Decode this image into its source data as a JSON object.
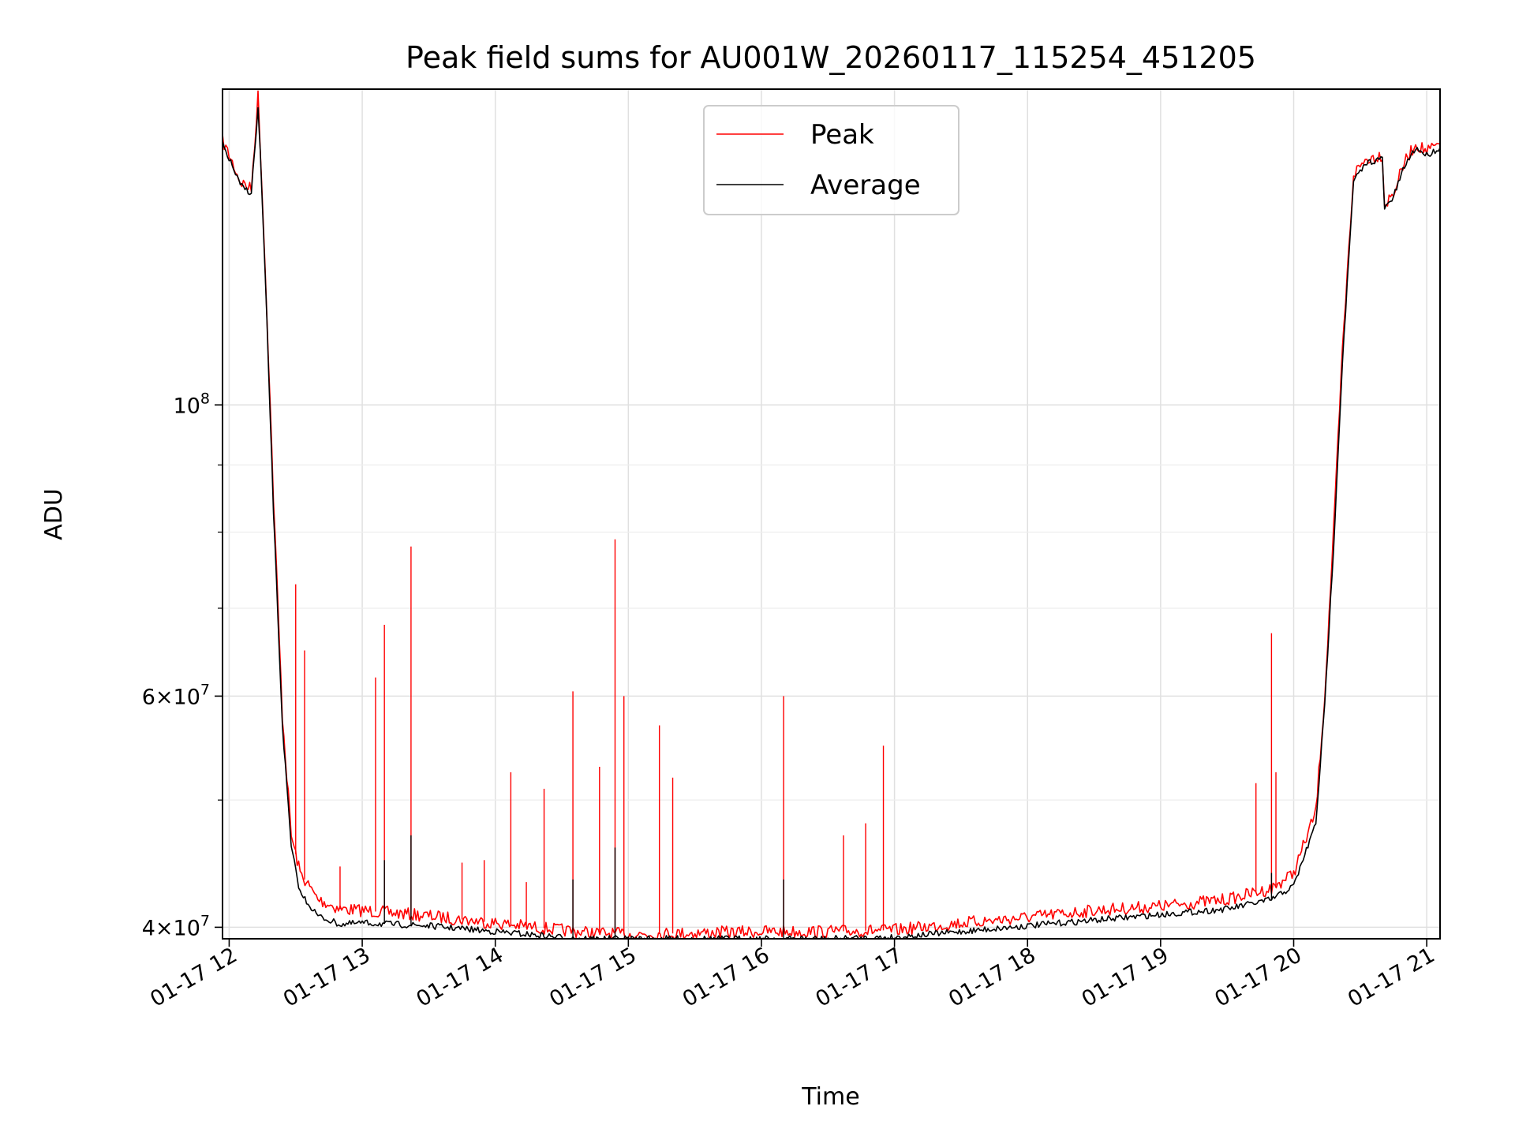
{
  "chart_data": {
    "type": "line",
    "title": "Peak field sums for AU001W_20260117_115254_451205",
    "xlabel": "Time",
    "ylabel": "ADU",
    "y_scale": "log",
    "ylim": [
      39200000,
      174000000
    ],
    "xlim": [
      "2026-01-17T11:57:00",
      "2026-01-17T21:06:00"
    ],
    "x_ticks": [
      "01-17 12",
      "01-17 13",
      "01-17 14",
      "01-17 15",
      "01-17 16",
      "01-17 17",
      "01-17 18",
      "01-17 19",
      "01-17 20",
      "01-17 21"
    ],
    "y_ticks": [
      {
        "value": 40000000,
        "mantissa": "4",
        "exponent": "7"
      },
      {
        "value": 60000000,
        "mantissa": "6",
        "exponent": "7"
      },
      {
        "value": 100000000,
        "mantissa": "",
        "exponent": "8"
      }
    ],
    "grid": true,
    "legend_position": "top-center",
    "series": [
      {
        "name": "Peak",
        "color": "#ff0000",
        "x": [
          "2026-01-17T11:57:00",
          "2026-01-17T12:00:00",
          "2026-01-17T12:05:00",
          "2026-01-17T12:10:00",
          "2026-01-17T12:13:00",
          "2026-01-17T12:14:00",
          "2026-01-17T12:17:00",
          "2026-01-17T12:20:00",
          "2026-01-17T12:24:00",
          "2026-01-17T12:28:00",
          "2026-01-17T12:32:00",
          "2026-01-17T12:40:00",
          "2026-01-17T12:50:00",
          "2026-01-17T13:00:00",
          "2026-01-17T13:30:00",
          "2026-01-17T14:00:00",
          "2026-01-17T14:30:00",
          "2026-01-17T14:45:00",
          "2026-01-17T15:00:00",
          "2026-01-17T15:30:00",
          "2026-01-17T16:00:00",
          "2026-01-17T16:30:00",
          "2026-01-17T17:00:00",
          "2026-01-17T17:30:00",
          "2026-01-17T18:00:00",
          "2026-01-17T18:30:00",
          "2026-01-17T19:00:00",
          "2026-01-17T19:30:00",
          "2026-01-17T19:50:00",
          "2026-01-17T20:00:00",
          "2026-01-17T20:10:00",
          "2026-01-17T20:14:00",
          "2026-01-17T20:18:00",
          "2026-01-17T20:22:00",
          "2026-01-17T20:27:00",
          "2026-01-17T20:33:00",
          "2026-01-17T20:40:00",
          "2026-01-17T20:41:00",
          "2026-01-17T20:45:00",
          "2026-01-17T20:50:00",
          "2026-01-17T20:55:00",
          "2026-01-17T21:00:00",
          "2026-01-17T21:06:00"
        ],
        "y": [
          159000000,
          155000000,
          148000000,
          146000000,
          172000000,
          158000000,
          118000000,
          85000000,
          58000000,
          47000000,
          44000000,
          42000000,
          41300000,
          41200000,
          40800000,
          40300000,
          39800000,
          39600000,
          39500000,
          39600000,
          39700000,
          39700000,
          39800000,
          40300000,
          40700000,
          41200000,
          41500000,
          42000000,
          42800000,
          44000000,
          49000000,
          60000000,
          80000000,
          110000000,
          150000000,
          154000000,
          155000000,
          142000000,
          145000000,
          153000000,
          158000000,
          156000000,
          158000000
        ],
        "spikes": [
          {
            "x": "2026-01-17T12:30:00",
            "y": 73000000
          },
          {
            "x": "2026-01-17T12:34:00",
            "y": 65000000
          },
          {
            "x": "2026-01-17T12:50:00",
            "y": 44500000
          },
          {
            "x": "2026-01-17T13:06:00",
            "y": 62000000
          },
          {
            "x": "2026-01-17T13:10:00",
            "y": 68000000
          },
          {
            "x": "2026-01-17T13:22:00",
            "y": 78000000
          },
          {
            "x": "2026-01-17T13:45:00",
            "y": 44800000
          },
          {
            "x": "2026-01-17T13:55:00",
            "y": 45000000
          },
          {
            "x": "2026-01-17T14:07:00",
            "y": 52500000
          },
          {
            "x": "2026-01-17T14:14:00",
            "y": 43300000
          },
          {
            "x": "2026-01-17T14:22:00",
            "y": 51000000
          },
          {
            "x": "2026-01-17T14:35:00",
            "y": 60500000
          },
          {
            "x": "2026-01-17T14:47:00",
            "y": 53000000
          },
          {
            "x": "2026-01-17T14:54:00",
            "y": 79000000
          },
          {
            "x": "2026-01-17T14:58:00",
            "y": 60000000
          },
          {
            "x": "2026-01-17T15:14:00",
            "y": 57000000
          },
          {
            "x": "2026-01-17T15:20:00",
            "y": 52000000
          },
          {
            "x": "2026-01-17T16:10:00",
            "y": 60000000
          },
          {
            "x": "2026-01-17T16:37:00",
            "y": 47000000
          },
          {
            "x": "2026-01-17T16:47:00",
            "y": 48000000
          },
          {
            "x": "2026-01-17T16:55:00",
            "y": 55000000
          },
          {
            "x": "2026-01-17T19:43:00",
            "y": 51500000
          },
          {
            "x": "2026-01-17T19:50:00",
            "y": 67000000
          },
          {
            "x": "2026-01-17T19:52:00",
            "y": 52500000
          }
        ]
      },
      {
        "name": "Average",
        "color": "#000000",
        "x": [
          "2026-01-17T11:57:00",
          "2026-01-17T12:00:00",
          "2026-01-17T12:05:00",
          "2026-01-17T12:10:00",
          "2026-01-17T12:13:00",
          "2026-01-17T12:14:00",
          "2026-01-17T12:17:00",
          "2026-01-17T12:20:00",
          "2026-01-17T12:24:00",
          "2026-01-17T12:28:00",
          "2026-01-17T12:32:00",
          "2026-01-17T12:40:00",
          "2026-01-17T12:50:00",
          "2026-01-17T13:00:00",
          "2026-01-17T13:30:00",
          "2026-01-17T14:00:00",
          "2026-01-17T14:30:00",
          "2026-01-17T14:45:00",
          "2026-01-17T15:00:00",
          "2026-01-17T15:30:00",
          "2026-01-17T16:00:00",
          "2026-01-17T16:30:00",
          "2026-01-17T17:00:00",
          "2026-01-17T17:30:00",
          "2026-01-17T18:00:00",
          "2026-01-17T18:30:00",
          "2026-01-17T19:00:00",
          "2026-01-17T19:30:00",
          "2026-01-17T19:50:00",
          "2026-01-17T20:00:00",
          "2026-01-17T20:10:00",
          "2026-01-17T20:14:00",
          "2026-01-17T20:18:00",
          "2026-01-17T20:22:00",
          "2026-01-17T20:27:00",
          "2026-01-17T20:33:00",
          "2026-01-17T20:40:00",
          "2026-01-17T20:41:00",
          "2026-01-17T20:45:00",
          "2026-01-17T20:50:00",
          "2026-01-17T20:55:00",
          "2026-01-17T21:00:00",
          "2026-01-17T21:06:00"
        ],
        "y": [
          158000000,
          154000000,
          147000000,
          145000000,
          168000000,
          156000000,
          116000000,
          83000000,
          57000000,
          46000000,
          42500000,
          40800000,
          40200000,
          40300000,
          40100000,
          39700000,
          39300000,
          39200000,
          39200000,
          39200000,
          39200000,
          39200000,
          39300000,
          39700000,
          40100000,
          40500000,
          40900000,
          41300000,
          42000000,
          43000000,
          48000000,
          59000000,
          78000000,
          108000000,
          148000000,
          153000000,
          154000000,
          141000000,
          144000000,
          152000000,
          157000000,
          155000000,
          157000000
        ],
        "spikes": [
          {
            "x": "2026-01-17T13:10:00",
            "y": 45000000
          },
          {
            "x": "2026-01-17T13:22:00",
            "y": 47000000
          },
          {
            "x": "2026-01-17T14:35:00",
            "y": 43500000
          },
          {
            "x": "2026-01-17T14:54:00",
            "y": 46000000
          },
          {
            "x": "2026-01-17T16:10:00",
            "y": 43500000
          },
          {
            "x": "2026-01-17T19:50:00",
            "y": 44000000
          }
        ]
      }
    ]
  }
}
